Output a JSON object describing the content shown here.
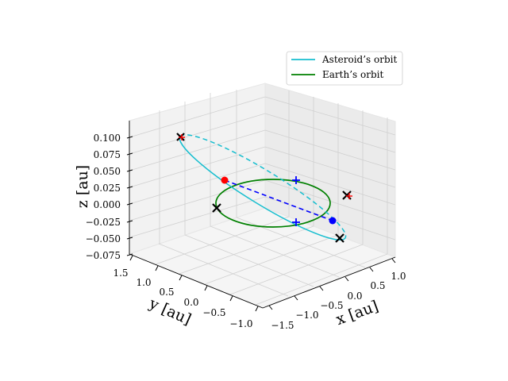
{
  "chart_data": {
    "type": "scatter",
    "projection": "3d",
    "xlabel": "x [au]",
    "ylabel": "y [au]",
    "zlabel": "z [au]",
    "x_ticks": [
      "−1.5",
      "−1.0",
      "−0.5",
      "0.0",
      "0.5",
      "1.0"
    ],
    "y_ticks": [
      "1.5",
      "1.0",
      "0.5",
      "0.0",
      "−0.5",
      "−1.0"
    ],
    "z_ticks": [
      "0.100",
      "0.075",
      "0.050",
      "0.025",
      "0.000",
      "−0.025",
      "−0.050",
      "−0.075"
    ],
    "x_tick_values": [
      -1.5,
      -1.0,
      -0.5,
      0.0,
      0.5,
      1.0
    ],
    "y_tick_values": [
      1.5,
      1.0,
      0.5,
      0.0,
      -0.5,
      -1.0
    ],
    "z_tick_values": [
      0.1,
      0.075,
      0.05,
      0.025,
      0.0,
      -0.025,
      -0.05,
      -0.075
    ],
    "grid": true,
    "legend_position": "top-right",
    "series": [
      {
        "name": "Asteroid’s orbit",
        "kind": "orbit",
        "color": "#17becf"
      },
      {
        "name": "Earth’s orbit",
        "kind": "orbit",
        "color": "#008000"
      }
    ],
    "markers": [
      {
        "kind": "position",
        "color": "#ff0000",
        "marker": "dot"
      },
      {
        "kind": "position",
        "color": "#0000ff",
        "marker": "dot"
      },
      {
        "kind": "node",
        "color": "#000000",
        "marker": "x"
      },
      {
        "kind": "node",
        "color": "#000000",
        "marker": "x"
      },
      {
        "kind": "node",
        "color": "#000000",
        "marker": "x"
      },
      {
        "kind": "node",
        "color": "#000000",
        "marker": "x"
      },
      {
        "kind": "crossing",
        "color": "#0000ff",
        "marker": "+"
      },
      {
        "kind": "crossing",
        "color": "#0000ff",
        "marker": "+"
      }
    ],
    "connector": {
      "color": "#0000ff",
      "style": "dashed"
    }
  }
}
